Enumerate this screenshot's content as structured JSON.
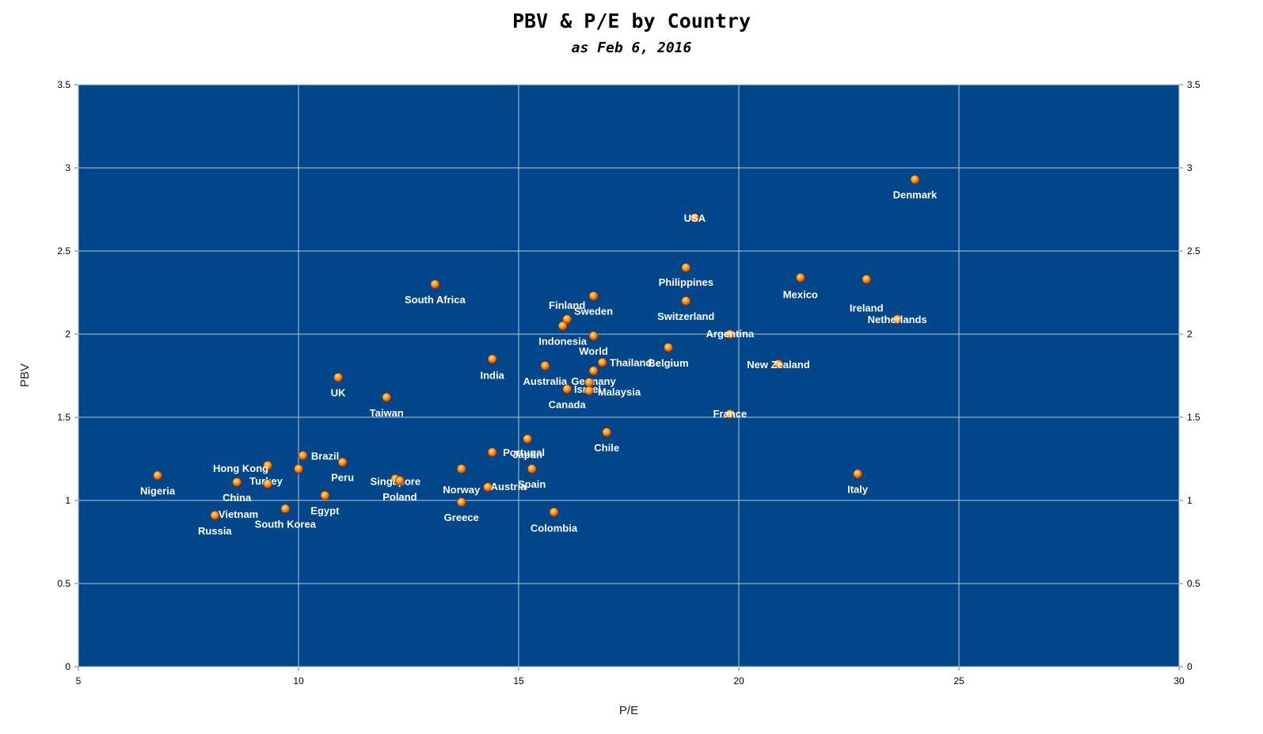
{
  "chart_data": {
    "type": "scatter",
    "title": "PBV & P/E by Country",
    "subtitle": "as Feb 6, 2016",
    "xlabel": "P/E",
    "ylabel": "PBV",
    "xlim": [
      5,
      30
    ],
    "ylim": [
      0,
      3.5
    ],
    "x_ticks": [
      "5",
      "10",
      "15",
      "20",
      "25",
      "30"
    ],
    "y_ticks": [
      "0",
      "0.5",
      "1",
      "1.5",
      "2",
      "2.5",
      "3",
      "3.5"
    ],
    "grid": true,
    "plot_background": "#00468b",
    "marker_color": "#f07818",
    "points": [
      {
        "label": "Denmark",
        "x": 24.0,
        "y": 2.93
      },
      {
        "label": "USA",
        "x": 19.0,
        "y": 2.7
      },
      {
        "label": "Philippines",
        "x": 18.8,
        "y": 2.4
      },
      {
        "label": "Mexico",
        "x": 21.4,
        "y": 2.34
      },
      {
        "label": "Ireland",
        "x": 22.9,
        "y": 2.33
      },
      {
        "label": "South Africa",
        "x": 13.1,
        "y": 2.3
      },
      {
        "label": "Sweden",
        "x": 16.7,
        "y": 2.23
      },
      {
        "label": "Switzerland",
        "x": 18.8,
        "y": 2.2
      },
      {
        "label": "Netherlands",
        "x": 23.6,
        "y": 2.09
      },
      {
        "label": "Finland",
        "x": 16.1,
        "y": 2.09
      },
      {
        "label": "Indonesia",
        "x": 16.0,
        "y": 2.05
      },
      {
        "label": "Argentina",
        "x": 19.8,
        "y": 2.0
      },
      {
        "label": "World",
        "x": 16.7,
        "y": 1.99
      },
      {
        "label": "Belgium",
        "x": 18.4,
        "y": 1.92
      },
      {
        "label": "India",
        "x": 14.4,
        "y": 1.85
      },
      {
        "label": "Thailand",
        "x": 16.9,
        "y": 1.83
      },
      {
        "label": "New Zealand",
        "x": 20.9,
        "y": 1.82
      },
      {
        "label": "Australia",
        "x": 15.6,
        "y": 1.81
      },
      {
        "label": "Germany",
        "x": 16.7,
        "y": 1.78
      },
      {
        "label": "UK",
        "x": 10.9,
        "y": 1.74
      },
      {
        "label": "Israel",
        "x": 16.6,
        "y": 1.71
      },
      {
        "label": "Canada",
        "x": 16.1,
        "y": 1.67
      },
      {
        "label": "Malaysia",
        "x": 16.6,
        "y": 1.66
      },
      {
        "label": "Taiwan",
        "x": 12.0,
        "y": 1.62
      },
      {
        "label": "France",
        "x": 19.8,
        "y": 1.52
      },
      {
        "label": "Chile",
        "x": 17.0,
        "y": 1.41
      },
      {
        "label": "Japan",
        "x": 15.2,
        "y": 1.37
      },
      {
        "label": "Portugal",
        "x": 14.4,
        "y": 1.29
      },
      {
        "label": "Brazil",
        "x": 10.1,
        "y": 1.27
      },
      {
        "label": "Peru",
        "x": 11.0,
        "y": 1.23
      },
      {
        "label": "Hong Kong",
        "x": 9.3,
        "y": 1.21
      },
      {
        "label": "Norway",
        "x": 13.7,
        "y": 1.19
      },
      {
        "label": "Spain",
        "x": 15.3,
        "y": 1.19
      },
      {
        "label": "Turkey",
        "x": 10.0,
        "y": 1.19
      },
      {
        "label": "Italy",
        "x": 22.7,
        "y": 1.16
      },
      {
        "label": "Nigeria",
        "x": 6.8,
        "y": 1.15
      },
      {
        "label": "Singapore",
        "x": 12.2,
        "y": 1.13
      },
      {
        "label": "Poland",
        "x": 12.3,
        "y": 1.12
      },
      {
        "label": "China",
        "x": 8.6,
        "y": 1.11
      },
      {
        "label": "Vietnam",
        "x": 9.3,
        "y": 1.1
      },
      {
        "label": "Austria",
        "x": 14.3,
        "y": 1.08
      },
      {
        "label": "Egypt",
        "x": 10.6,
        "y": 1.03
      },
      {
        "label": "Greece",
        "x": 13.7,
        "y": 0.99
      },
      {
        "label": "South Korea",
        "x": 9.7,
        "y": 0.95
      },
      {
        "label": "Colombia",
        "x": 15.8,
        "y": 0.93
      },
      {
        "label": "Russia",
        "x": 8.1,
        "y": 0.91
      }
    ]
  }
}
